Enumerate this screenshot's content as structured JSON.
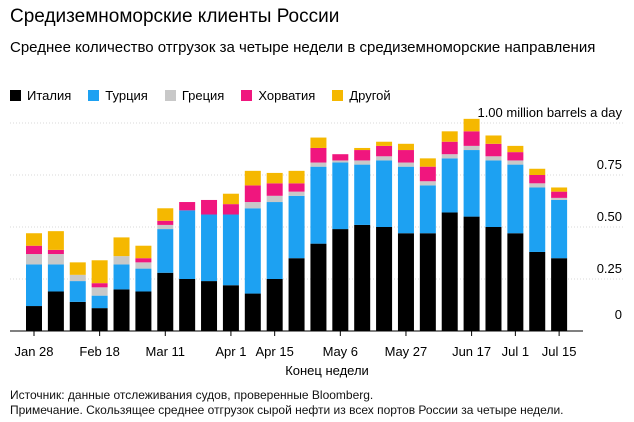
{
  "title": "Средиземноморские клиенты России",
  "subtitle": "Среднее количество отгрузок за четыре недели в средиземноморские направления",
  "legend": [
    {
      "label": "Италия",
      "color": "#000000"
    },
    {
      "label": "Турция",
      "color": "#1da1f2"
    },
    {
      "label": "Греция",
      "color": "#c8c8c8"
    },
    {
      "label": "Хорватия",
      "color": "#f0167e"
    },
    {
      "label": "Другой",
      "color": "#f5b800"
    }
  ],
  "footer": {
    "source": "Источник: данные отслеживания судов, проверенные Bloomberg.",
    "note": "Примечание. Скользящее среднее отгрузок сырой нефти из всех портов России за четыре недели."
  },
  "chart_data": {
    "type": "bar",
    "stacked": true,
    "xlabel": "Конец недели",
    "ylabel": "",
    "y_unit_label": "1.00 million barrels a day",
    "ylim": [
      0,
      1.0
    ],
    "y_ticks": [
      {
        "value": 0,
        "label": "0"
      },
      {
        "value": 0.25,
        "label": "0.25"
      },
      {
        "value": 0.5,
        "label": "0.50"
      },
      {
        "value": 0.75,
        "label": "0.75"
      },
      {
        "value": 1.0,
        "label": "1.00"
      }
    ],
    "x_tick_labels": [
      {
        "index": 0,
        "label": "Jan 28"
      },
      {
        "index": 3,
        "label": "Feb 18"
      },
      {
        "index": 6,
        "label": "Mar 11"
      },
      {
        "index": 9,
        "label": "Apr 1"
      },
      {
        "index": 11,
        "label": "Apr 15"
      },
      {
        "index": 14,
        "label": "May 6"
      },
      {
        "index": 17,
        "label": "May 27"
      },
      {
        "index": 20,
        "label": "Jun 17"
      },
      {
        "index": 22,
        "label": "Jul 1"
      },
      {
        "index": 24,
        "label": "Jul 15"
      }
    ],
    "categories": [
      "Jan 28",
      "Feb 4",
      "Feb 11",
      "Feb 18",
      "Feb 25",
      "Mar 4",
      "Mar 11",
      "Mar 18",
      "Mar 25",
      "Apr 1",
      "Apr 8",
      "Apr 15",
      "Apr 22",
      "Apr 29",
      "May 6",
      "May 13",
      "May 20",
      "May 27",
      "Jun 3",
      "Jun 10",
      "Jun 17",
      "Jun 24",
      "Jul 1",
      "Jul 8",
      "Jul 15"
    ],
    "series": [
      {
        "name": "Италия",
        "color": "#000000",
        "values": [
          0.12,
          0.19,
          0.14,
          0.11,
          0.2,
          0.19,
          0.28,
          0.25,
          0.24,
          0.22,
          0.18,
          0.25,
          0.35,
          0.42,
          0.49,
          0.51,
          0.5,
          0.47,
          0.47,
          0.57,
          0.55,
          0.5,
          0.47,
          0.38,
          0.35
        ]
      },
      {
        "name": "Турция",
        "color": "#1da1f2",
        "values": [
          0.2,
          0.13,
          0.1,
          0.06,
          0.12,
          0.11,
          0.21,
          0.33,
          0.32,
          0.34,
          0.41,
          0.37,
          0.3,
          0.37,
          0.32,
          0.29,
          0.32,
          0.32,
          0.23,
          0.26,
          0.32,
          0.32,
          0.33,
          0.31,
          0.28
        ]
      },
      {
        "name": "Греция",
        "color": "#c8c8c8",
        "values": [
          0.05,
          0.05,
          0.03,
          0.04,
          0.04,
          0.03,
          0.02,
          0.0,
          0.0,
          0.0,
          0.03,
          0.03,
          0.02,
          0.02,
          0.01,
          0.02,
          0.02,
          0.02,
          0.02,
          0.02,
          0.02,
          0.02,
          0.02,
          0.02,
          0.01
        ]
      },
      {
        "name": "Хорватия",
        "color": "#f0167e",
        "values": [
          0.04,
          0.02,
          0.0,
          0.02,
          0.0,
          0.02,
          0.02,
          0.04,
          0.07,
          0.05,
          0.08,
          0.06,
          0.04,
          0.07,
          0.03,
          0.05,
          0.05,
          0.06,
          0.07,
          0.06,
          0.07,
          0.06,
          0.04,
          0.04,
          0.03
        ]
      },
      {
        "name": "Другой",
        "color": "#f5b800",
        "values": [
          0.06,
          0.09,
          0.06,
          0.11,
          0.09,
          0.06,
          0.06,
          0.0,
          0.0,
          0.05,
          0.07,
          0.05,
          0.06,
          0.05,
          0.0,
          0.01,
          0.02,
          0.03,
          0.04,
          0.05,
          0.06,
          0.04,
          0.03,
          0.03,
          0.02
        ]
      }
    ]
  }
}
